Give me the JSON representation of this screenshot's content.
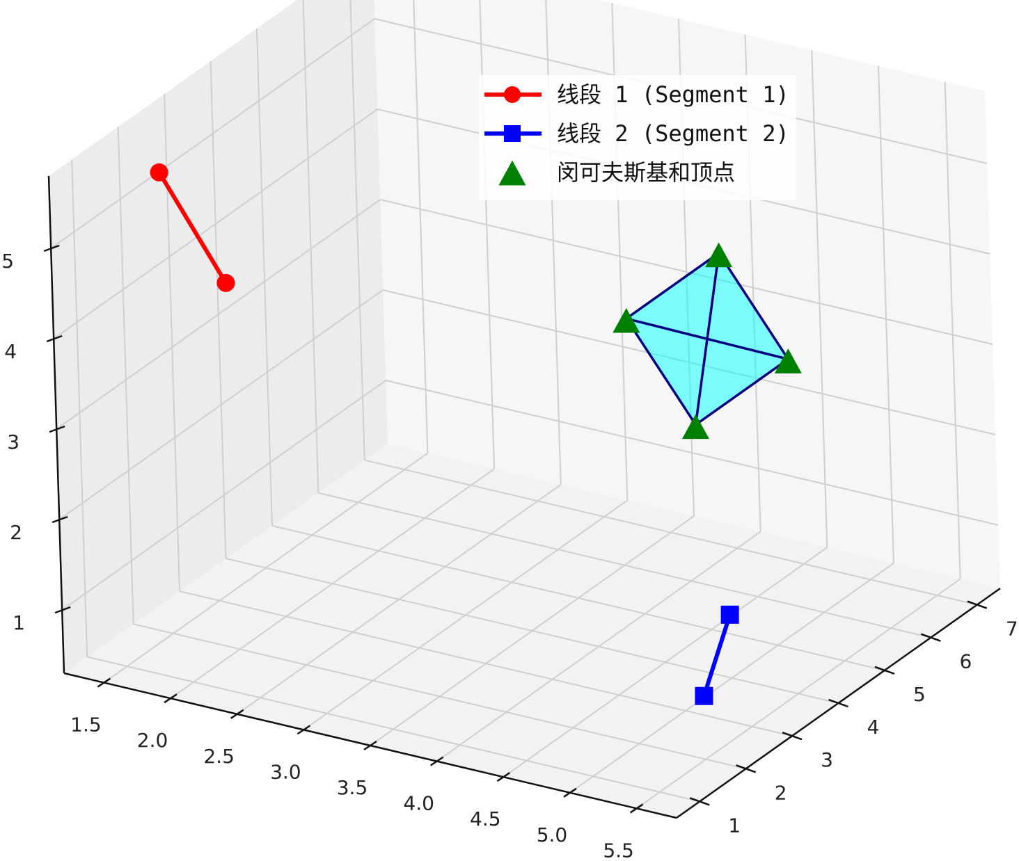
{
  "chart_data": {
    "type": "scatter",
    "projection": "3d",
    "view": {
      "elev": 22,
      "azim": -60
    },
    "grid": true,
    "legend_location": "upper-center",
    "xlim": [
      1.2,
      5.8
    ],
    "ylim": [
      0.5,
      7.5
    ],
    "zlim": [
      0.3,
      5.8
    ],
    "x_ticks": [
      {
        "value": 1.5,
        "label": "1.5"
      },
      {
        "value": 2.0,
        "label": "2.0"
      },
      {
        "value": 2.5,
        "label": "2.5"
      },
      {
        "value": 3.0,
        "label": "3.0"
      },
      {
        "value": 3.5,
        "label": "3.5"
      },
      {
        "value": 4.0,
        "label": "4.0"
      },
      {
        "value": 4.5,
        "label": "4.5"
      },
      {
        "value": 5.0,
        "label": "5.0"
      },
      {
        "value": 5.5,
        "label": "5.5"
      }
    ],
    "y_ticks": [
      {
        "value": 1,
        "label": "1"
      },
      {
        "value": 2,
        "label": "2"
      },
      {
        "value": 3,
        "label": "3"
      },
      {
        "value": 4,
        "label": "4"
      },
      {
        "value": 5,
        "label": "5"
      },
      {
        "value": 6,
        "label": "6"
      },
      {
        "value": 7,
        "label": "7"
      }
    ],
    "z_ticks": [
      {
        "value": 1,
        "label": "1"
      },
      {
        "value": 2,
        "label": "2"
      },
      {
        "value": 3,
        "label": "3"
      },
      {
        "value": 4,
        "label": "4"
      },
      {
        "value": 5,
        "label": "5"
      }
    ],
    "series": [
      {
        "name": "线段 1 (Segment 1)",
        "kind": "line",
        "marker": "circle",
        "color": "#ff0000",
        "points": [
          [
            1.5,
            2.0,
            5.4
          ],
          [
            1.8,
            2.5,
            4.1
          ]
        ]
      },
      {
        "name": "线段 2 (Segment 2)",
        "kind": "line",
        "marker": "square",
        "color": "#0000ff",
        "points": [
          [
            5.0,
            4.0,
            1.0
          ],
          [
            5.5,
            2.0,
            1.0
          ]
        ]
      },
      {
        "name": "闵可夫斯基和顶点",
        "kind": "scatter",
        "marker": "triangle",
        "color": "#008000",
        "points": [
          [
            5.0,
            2.0,
            5.0
          ],
          [
            5.5,
            2.0,
            4.0
          ],
          [
            5.5,
            4.0,
            4.0
          ],
          [
            5.0,
            4.0,
            5.0
          ]
        ]
      }
    ],
    "polygon": {
      "fill": "#00ffff",
      "fill_opacity": 0.5,
      "edge_color": "#000080",
      "vertices": [
        [
          5.0,
          2.0,
          5.0
        ],
        [
          5.5,
          2.0,
          4.0
        ],
        [
          5.5,
          4.0,
          4.0
        ],
        [
          5.0,
          4.0,
          5.0
        ]
      ],
      "diagonals": [
        [
          0,
          2
        ],
        [
          1,
          3
        ]
      ]
    }
  }
}
